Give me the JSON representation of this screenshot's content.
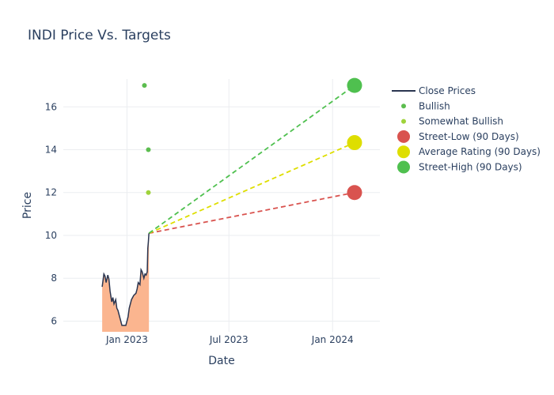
{
  "chart_data": {
    "type": "line",
    "title": "INDI Price Vs. Targets",
    "xlabel": "Date",
    "ylabel": "Price",
    "xlim": [
      "2022-09-10",
      "2024-03-25"
    ],
    "ylim": [
      5.5,
      17.3
    ],
    "x_ticks": [
      {
        "date": "2023-01-01",
        "label": "Jan 2023"
      },
      {
        "date": "2023-07-01",
        "label": "Jul 2023"
      },
      {
        "date": "2024-01-01",
        "label": "Jan 2024"
      }
    ],
    "y_ticks": [
      6,
      8,
      10,
      12,
      14,
      16
    ],
    "grid": true,
    "legend_position": "right",
    "series": [
      {
        "name": "Close Prices",
        "kind": "line-area",
        "color": "#2a3550",
        "fill": "#fbb58f",
        "points": [
          [
            "2022-11-18",
            7.6
          ],
          [
            "2022-11-21",
            8.2
          ],
          [
            "2022-11-23",
            8.1
          ],
          [
            "2022-11-25",
            7.8
          ],
          [
            "2022-11-28",
            8.15
          ],
          [
            "2022-11-30",
            7.95
          ],
          [
            "2022-12-02",
            7.4
          ],
          [
            "2022-12-05",
            6.9
          ],
          [
            "2022-12-07",
            7.1
          ],
          [
            "2022-12-09",
            6.8
          ],
          [
            "2022-12-12",
            7.0
          ],
          [
            "2022-12-14",
            6.6
          ],
          [
            "2022-12-16",
            6.5
          ],
          [
            "2022-12-19",
            6.2
          ],
          [
            "2022-12-21",
            6.0
          ],
          [
            "2022-12-23",
            5.8
          ],
          [
            "2022-12-27",
            5.8
          ],
          [
            "2022-12-30",
            5.8
          ],
          [
            "2023-01-03",
            6.2
          ],
          [
            "2023-01-05",
            6.6
          ],
          [
            "2023-01-09",
            7.0
          ],
          [
            "2023-01-11",
            7.1
          ],
          [
            "2023-01-13",
            7.2
          ],
          [
            "2023-01-17",
            7.3
          ],
          [
            "2023-01-19",
            7.5
          ],
          [
            "2023-01-21",
            7.8
          ],
          [
            "2023-01-24",
            7.7
          ],
          [
            "2023-01-26",
            8.4
          ],
          [
            "2023-01-28",
            8.3
          ],
          [
            "2023-01-31",
            8.0
          ],
          [
            "2023-02-02",
            8.2
          ],
          [
            "2023-02-04",
            8.15
          ],
          [
            "2023-02-06",
            8.3
          ],
          [
            "2023-02-07",
            9.4
          ],
          [
            "2023-02-08",
            9.7
          ],
          [
            "2023-02-09",
            10.1
          ]
        ]
      },
      {
        "name": "Bullish",
        "kind": "markers",
        "color": "#5cbd4f",
        "points": [
          [
            "2023-02-01",
            17.0
          ],
          [
            "2023-02-08",
            14.0
          ]
        ]
      },
      {
        "name": "Somewhat Bullish",
        "kind": "markers",
        "color": "#9fd33b",
        "points": [
          [
            "2023-02-08",
            12.0
          ]
        ]
      },
      {
        "name": "Street-Low (90 Days)",
        "kind": "target",
        "color": "#d9534f",
        "from": [
          "2023-02-09",
          10.1
        ],
        "to": [
          "2024-02-09",
          12.0
        ]
      },
      {
        "name": "Average Rating (90 Days)",
        "kind": "target",
        "color": "#dede00",
        "from": [
          "2023-02-09",
          10.1
        ],
        "to": [
          "2024-02-09",
          14.33
        ]
      },
      {
        "name": "Street-High (90 Days)",
        "kind": "target",
        "color": "#4fc04f",
        "from": [
          "2023-02-09",
          10.1
        ],
        "to": [
          "2024-02-09",
          17.0
        ]
      }
    ]
  }
}
